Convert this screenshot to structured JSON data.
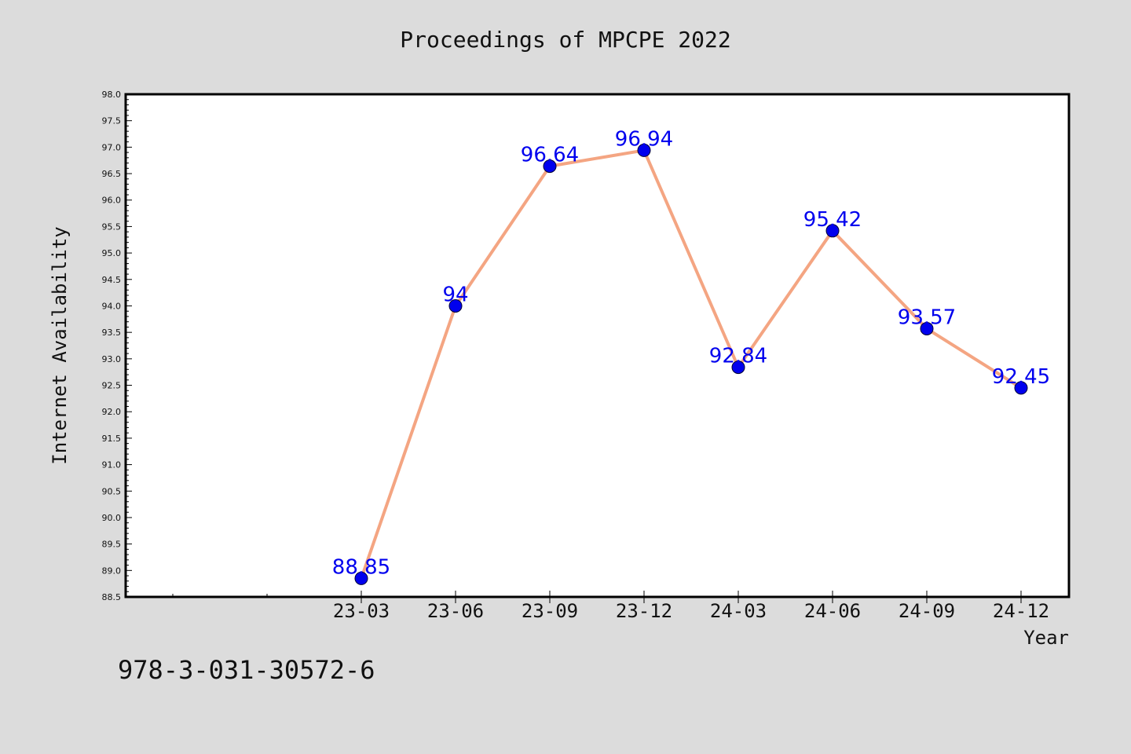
{
  "title": "Proceedings of MPCPE 2022",
  "footnote": "978-3-031-30572-6",
  "colors": {
    "background": "#dcdcdc",
    "plot_background": "#ffffff",
    "line": "#f4a582",
    "marker": "#0000ee",
    "data_label": "#0000ee"
  },
  "chart_data": {
    "type": "line",
    "title": "Proceedings of MPCPE 2022",
    "xlabel": "Year",
    "ylabel": "Internet Availability",
    "categories": [
      "23-03",
      "23-06",
      "23-09",
      "23-12",
      "24-03",
      "24-06",
      "24-09",
      "24-12"
    ],
    "series": [
      {
        "values": [
          88.85,
          94,
          96.64,
          96.94,
          92.84,
          95.42,
          93.57,
          92.45
        ]
      }
    ],
    "data_labels": [
      "88.85",
      "94",
      "96.64",
      "96.94",
      "92.84",
      "95.42",
      "93.57",
      "92.45"
    ],
    "ylim": [
      88.5,
      98.0
    ],
    "yticks": [
      "88.5",
      "89.0",
      "89.5",
      "90.0",
      "90.5",
      "91.0",
      "91.5",
      "92.0",
      "92.5",
      "93.0",
      "93.5",
      "94.0",
      "94.5",
      "95.0",
      "95.5",
      "96.0",
      "96.5",
      "97.0",
      "97.5",
      "98.0"
    ],
    "grid": false,
    "legend": "none"
  }
}
